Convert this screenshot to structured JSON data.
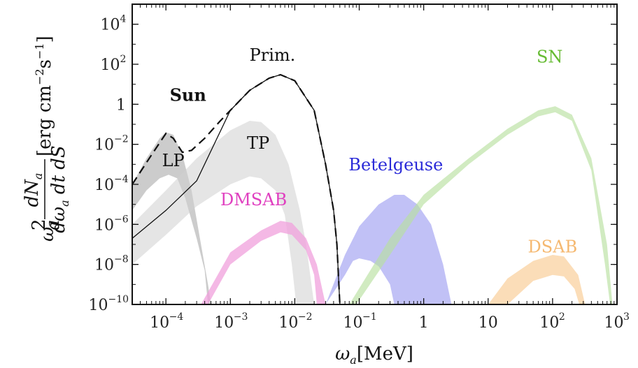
{
  "chart_data": {
    "type": "area",
    "xlabel": "ω_a[MeV]",
    "ylabel": "ω_a² dN_a/(dω_a dt dS) [erg cm⁻² s⁻¹]",
    "xscale": "log",
    "yscale": "log",
    "xlim": [
      3e-05,
      1000
    ],
    "ylim": [
      1e-10,
      100000.0
    ],
    "grid": false,
    "x_ticks": [
      {
        "value": 0.0001,
        "base": "10",
        "exp": "−4"
      },
      {
        "value": 0.001,
        "base": "10",
        "exp": "−3"
      },
      {
        "value": 0.01,
        "base": "10",
        "exp": "−2"
      },
      {
        "value": 0.1,
        "base": "10",
        "exp": "−1"
      },
      {
        "value": 1,
        "base": "1",
        "exp": ""
      },
      {
        "value": 10,
        "base": "10",
        "exp": ""
      },
      {
        "value": 100,
        "base": "10",
        "exp": "2"
      },
      {
        "value": 1000,
        "base": "10",
        "exp": "3"
      }
    ],
    "y_ticks": [
      {
        "value": 1e-10,
        "base": "10",
        "exp": "−10"
      },
      {
        "value": 1e-08,
        "base": "10",
        "exp": "−8"
      },
      {
        "value": 1e-06,
        "base": "10",
        "exp": "−6"
      },
      {
        "value": 0.0001,
        "base": "10",
        "exp": "−4"
      },
      {
        "value": 0.01,
        "base": "10",
        "exp": "−2"
      },
      {
        "value": 1,
        "base": "1",
        "exp": ""
      },
      {
        "value": 100,
        "base": "10",
        "exp": "2"
      },
      {
        "value": 10000,
        "base": "10",
        "exp": "4"
      }
    ],
    "bands": [
      {
        "name": "LP",
        "color": "#b0b0b0",
        "opacity": 0.65,
        "upper": [
          [
            3e-05,
            0.0001
          ],
          [
            5e-05,
            0.002
          ],
          [
            8e-05,
            0.02
          ],
          [
            0.0001,
            0.04
          ],
          [
            0.00013,
            0.03
          ],
          [
            0.00018,
            0.003
          ],
          [
            0.00025,
            5e-05
          ],
          [
            0.00035,
            1e-07
          ],
          [
            0.00045,
            1e-09
          ],
          [
            0.0005,
            1e-10
          ]
        ],
        "lower": [
          [
            3e-05,
            5e-06
          ],
          [
            5e-05,
            5e-05
          ],
          [
            8e-05,
            0.0002
          ],
          [
            0.00011,
            0.0003
          ],
          [
            0.00015,
            0.0002
          ],
          [
            0.0002,
            2e-05
          ],
          [
            0.0003,
            2e-07
          ],
          [
            0.0004,
            5e-09
          ],
          [
            0.00045,
            1e-10
          ]
        ]
      },
      {
        "name": "TP",
        "color": "#d0d0d0",
        "opacity": 0.55,
        "upper": [
          [
            3e-05,
            1e-06
          ],
          [
            0.0001,
            5e-05
          ],
          [
            0.0003,
            0.002
          ],
          [
            0.001,
            0.05
          ],
          [
            0.002,
            0.15
          ],
          [
            0.003,
            0.13
          ],
          [
            0.005,
            0.03
          ],
          [
            0.008,
            0.001
          ],
          [
            0.012,
            5e-06
          ],
          [
            0.015,
            1e-07
          ],
          [
            0.02,
            1e-10
          ]
        ],
        "lower": [
          [
            3e-05,
            1e-08
          ],
          [
            0.0001,
            3e-07
          ],
          [
            0.0003,
            8e-06
          ],
          [
            0.001,
            0.0001
          ],
          [
            0.002,
            0.00025
          ],
          [
            0.003,
            0.0002
          ],
          [
            0.005,
            5e-05
          ],
          [
            0.007,
            3e-06
          ],
          [
            0.009,
            1e-08
          ],
          [
            0.0105,
            1e-10
          ]
        ]
      },
      {
        "name": "DMSAB",
        "color": "#f0a0dc",
        "opacity": 0.75,
        "upper": [
          [
            0.00035,
            1e-10
          ],
          [
            0.001,
            4e-08
          ],
          [
            0.003,
            5e-07
          ],
          [
            0.006,
            1.5e-06
          ],
          [
            0.009,
            1.2e-06
          ],
          [
            0.015,
            2e-07
          ],
          [
            0.022,
            1e-08
          ],
          [
            0.03,
            1e-10
          ]
        ],
        "lower": [
          [
            0.00045,
            1e-10
          ],
          [
            0.001,
            1e-08
          ],
          [
            0.003,
            1.5e-07
          ],
          [
            0.006,
            4e-07
          ],
          [
            0.009,
            3e-07
          ],
          [
            0.015,
            5e-08
          ],
          [
            0.02,
            3e-09
          ],
          [
            0.022,
            1e-10
          ]
        ]
      },
      {
        "name": "Betelgeuse",
        "color": "#9898f0",
        "opacity": 0.6,
        "upper": [
          [
            0.03,
            1e-10
          ],
          [
            0.06,
            3e-08
          ],
          [
            0.1,
            8e-07
          ],
          [
            0.2,
            1e-05
          ],
          [
            0.35,
            3e-05
          ],
          [
            0.5,
            3e-05
          ],
          [
            0.8,
            1e-05
          ],
          [
            1.3,
            1e-06
          ],
          [
            2,
            1e-08
          ],
          [
            2.7,
            1e-10
          ]
        ],
        "lower": [
          [
            0.03,
            1e-10
          ],
          [
            0.06,
            3e-09
          ],
          [
            0.08,
            1.5e-08
          ],
          [
            0.1,
            2e-08
          ],
          [
            0.15,
            1.5e-08
          ],
          [
            0.2,
            8e-09
          ],
          [
            0.3,
            1e-09
          ],
          [
            0.35,
            1e-10
          ]
        ]
      },
      {
        "name": "SN",
        "color": "#b8e0a0",
        "opacity": 0.65,
        "upper": [
          [
            0.07,
            1e-10
          ],
          [
            0.3,
            2e-07
          ],
          [
            1,
            3e-05
          ],
          [
            5,
            0.002
          ],
          [
            20,
            0.06
          ],
          [
            60,
            0.5
          ],
          [
            110,
            0.8
          ],
          [
            200,
            0.3
          ],
          [
            400,
            0.002
          ],
          [
            700,
            1e-07
          ],
          [
            850,
            1e-10
          ]
        ],
        "lower": [
          [
            0.09,
            1e-10
          ],
          [
            0.3,
            3e-08
          ],
          [
            1,
            1e-05
          ],
          [
            5,
            0.001
          ],
          [
            20,
            0.03
          ],
          [
            60,
            0.25
          ],
          [
            110,
            0.4
          ],
          [
            200,
            0.15
          ],
          [
            400,
            0.0005
          ],
          [
            650,
            1e-08
          ],
          [
            780,
            1e-10
          ]
        ]
      },
      {
        "name": "DSAB",
        "color": "#fad2a0",
        "opacity": 0.75,
        "upper": [
          [
            10,
            1e-10
          ],
          [
            20,
            2e-09
          ],
          [
            50,
            1.5e-08
          ],
          [
            100,
            3e-08
          ],
          [
            150,
            2.5e-08
          ],
          [
            250,
            3e-09
          ],
          [
            320,
            1e-10
          ]
        ],
        "lower": [
          [
            20,
            1e-10
          ],
          [
            50,
            1.5e-09
          ],
          [
            100,
            3e-09
          ],
          [
            150,
            2.5e-09
          ],
          [
            220,
            6e-10
          ],
          [
            260,
            1e-10
          ]
        ]
      }
    ],
    "lines": [
      {
        "name": "Sun",
        "style": "dashed",
        "points": [
          [
            3e-05,
            0.0001
          ],
          [
            6e-05,
            0.003
          ],
          [
            0.0001,
            0.035
          ],
          [
            0.00013,
            0.02
          ],
          [
            0.00018,
            0.004
          ],
          [
            0.00025,
            0.005
          ],
          [
            0.0004,
            0.02
          ],
          [
            0.0007,
            0.15
          ],
          [
            0.001,
            0.5
          ],
          [
            0.002,
            5
          ],
          [
            0.004,
            20
          ],
          [
            0.006,
            30
          ],
          [
            0.01,
            15
          ],
          [
            0.02,
            0.5
          ],
          [
            0.03,
            0.001
          ],
          [
            0.04,
            5e-06
          ],
          [
            0.045,
            1e-07
          ],
          [
            0.05,
            1e-10
          ]
        ]
      },
      {
        "name": "Prim.",
        "style": "solid",
        "points": [
          [
            3e-05,
            2e-07
          ],
          [
            0.0001,
            5e-06
          ],
          [
            0.0003,
            0.00015
          ],
          [
            0.001,
            0.5
          ],
          [
            0.002,
            5
          ],
          [
            0.004,
            20
          ],
          [
            0.006,
            30
          ],
          [
            0.01,
            15
          ],
          [
            0.02,
            0.5
          ],
          [
            0.03,
            0.001
          ],
          [
            0.04,
            5e-06
          ],
          [
            0.045,
            1e-07
          ],
          [
            0.05,
            1e-10
          ]
        ]
      }
    ],
    "annotations": [
      {
        "text": "Sun",
        "x": 0.00022,
        "y": 1.5,
        "color": "#111111",
        "bold": true
      },
      {
        "text": "Prim.",
        "x": 0.0045,
        "y": 150,
        "color": "#111111",
        "bold": false
      },
      {
        "text": "LP",
        "x": 0.00013,
        "y": 0.0008,
        "color": "#111111",
        "bold": false
      },
      {
        "text": "TP",
        "x": 0.0027,
        "y": 0.006,
        "color": "#111111",
        "bold": false
      },
      {
        "text": "DMSAB",
        "x": 0.0023,
        "y": 9e-06,
        "color": "#e040c0",
        "bold": false
      },
      {
        "text": "Betelgeuse",
        "x": 0.37,
        "y": 0.0005,
        "color": "#2a2ad8",
        "bold": false
      },
      {
        "text": "SN",
        "x": 90,
        "y": 120,
        "color": "#66bb33",
        "bold": false
      },
      {
        "text": "DSAB",
        "x": 100,
        "y": 4e-08,
        "color": "#f5b870",
        "bold": false
      }
    ]
  }
}
